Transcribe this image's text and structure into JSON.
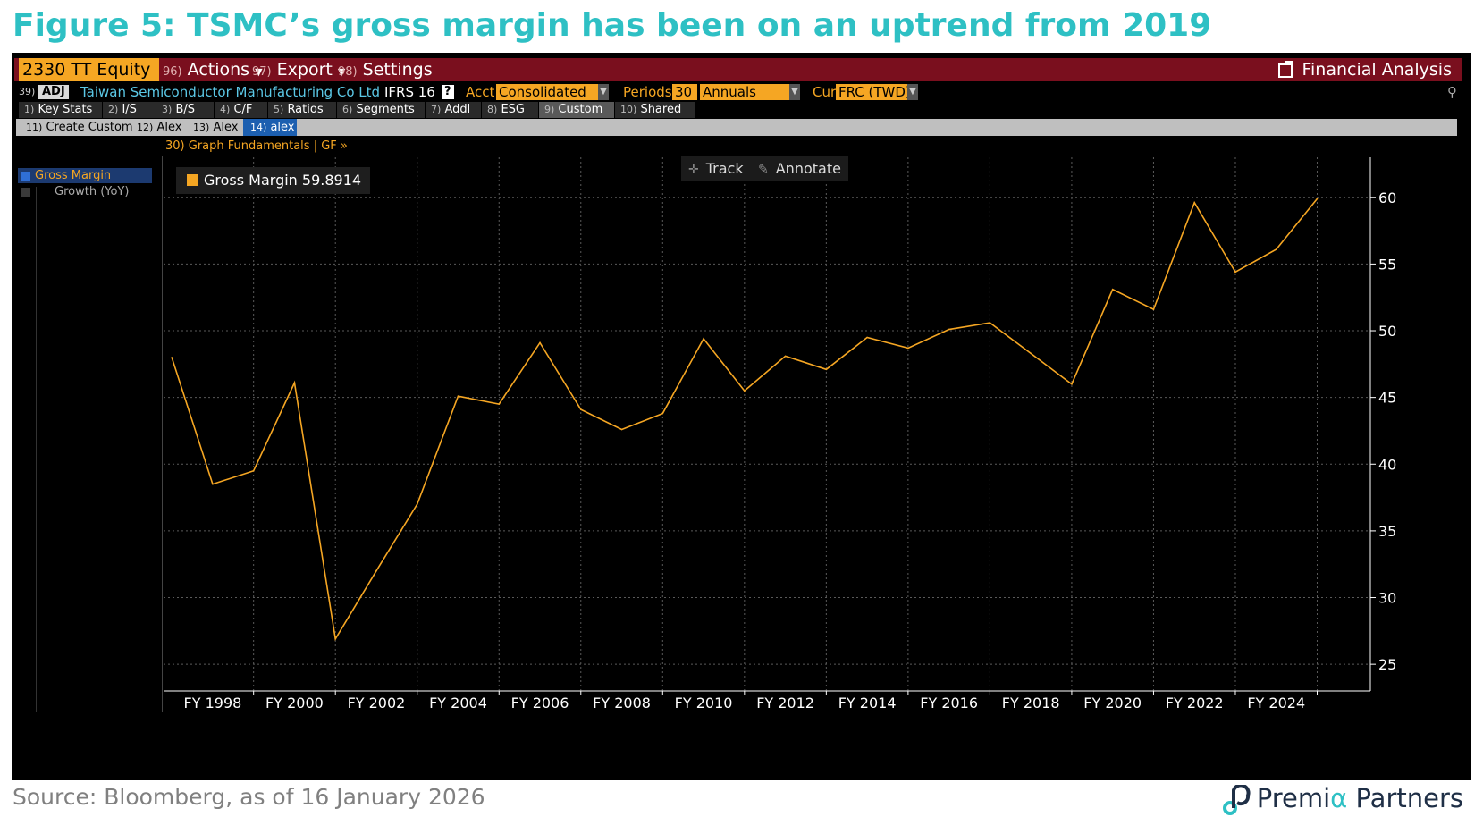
{
  "figure_title": "Figure 5: TSMC’s gross margin has been on an uptrend from 2019",
  "source": "Source: Bloomberg, as of 16 January 2026",
  "logo": {
    "part1": "Premi",
    "part2": "α",
    "part3": " Partners"
  },
  "colors": {
    "title": "#2ec0c4",
    "line": "#f5a623",
    "topbar": "#7a0f1e",
    "ticker": "#f5a623",
    "grid": "#5a5a5a"
  },
  "topbar": {
    "ticker": "2330 TT Equity",
    "actions_num": "96)",
    "actions_label": "Actions",
    "export_num": "97)",
    "export_label": "Export",
    "settings_num": "98)",
    "settings_label": "Settings",
    "financial_analysis": "Financial Analysis"
  },
  "security": {
    "num": "39)",
    "adj": "ADJ",
    "name": "Taiwan Semiconductor Manufacturing Co Ltd",
    "ifrs": "IFRS 16",
    "help": "?",
    "acct_label": "Acct",
    "acct_value": "Consolidated",
    "periods_label": "Periods",
    "periods_value": "30",
    "periods_type": "Annuals",
    "cur_label": "Cur",
    "cur_value": "FRC (TWD)"
  },
  "tabs": [
    {
      "num": "1)",
      "label": "Key Stats"
    },
    {
      "num": "2)",
      "label": "I/S"
    },
    {
      "num": "3)",
      "label": "B/S"
    },
    {
      "num": "4)",
      "label": "C/F"
    },
    {
      "num": "5)",
      "label": "Ratios"
    },
    {
      "num": "6)",
      "label": "Segments"
    },
    {
      "num": "7)",
      "label": "Addl"
    },
    {
      "num": "8)",
      "label": "ESG"
    },
    {
      "num": "9)",
      "label": "Custom"
    },
    {
      "num": "10)",
      "label": "Shared"
    }
  ],
  "subtabs": [
    {
      "num": "11)",
      "label": "Create Custom"
    },
    {
      "num": "12)",
      "label": "Alex"
    },
    {
      "num": "13)",
      "label": "Alex"
    },
    {
      "num": "14)",
      "label": "alex"
    }
  ],
  "graph_header": "30) Graph Fundamentals | GF »",
  "left_panel": {
    "selected": "Gross Margin",
    "unselected": "Growth (YoY)"
  },
  "legend": {
    "label": "Gross Margin",
    "value": "59.8914"
  },
  "toolbar": {
    "track": "Track",
    "annotate": "Annotate"
  },
  "chart_data": {
    "type": "line",
    "x": [
      1997,
      1998,
      1999,
      2000,
      2001,
      2002,
      2003,
      2004,
      2005,
      2006,
      2007,
      2008,
      2009,
      2010,
      2011,
      2012,
      2013,
      2014,
      2015,
      2016,
      2017,
      2018,
      2019,
      2020,
      2021,
      2022,
      2023,
      2024,
      2025
    ],
    "series": [
      {
        "name": "Gross Margin",
        "values": [
          48.0,
          38.5,
          39.5,
          46.1,
          26.9,
          32.0,
          37.0,
          45.1,
          44.5,
          49.1,
          44.1,
          42.6,
          43.8,
          49.4,
          45.5,
          48.1,
          47.1,
          49.5,
          48.7,
          50.1,
          50.6,
          48.3,
          46.0,
          53.1,
          51.6,
          59.6,
          54.4,
          56.1,
          59.89
        ]
      }
    ],
    "x_tick_labels": [
      "FY 1998",
      "FY 2000",
      "FY 2002",
      "FY 2004",
      "FY 2006",
      "FY 2008",
      "FY 2010",
      "FY 2012",
      "FY 2014",
      "FY 2016",
      "FY 2018",
      "FY 2020",
      "FY 2022",
      "FY 2024"
    ],
    "x_tick_years": [
      1998,
      2000,
      2002,
      2004,
      2006,
      2008,
      2010,
      2012,
      2014,
      2016,
      2018,
      2020,
      2022,
      2024
    ],
    "y_ticks": [
      25,
      30,
      35,
      40,
      45,
      50,
      55,
      60
    ],
    "ylim": [
      23,
      63
    ],
    "xlim": [
      1996.8,
      2026.3
    ],
    "grid": true,
    "legend_position": "top-left",
    "title": "",
    "xlabel": "",
    "ylabel": ""
  }
}
